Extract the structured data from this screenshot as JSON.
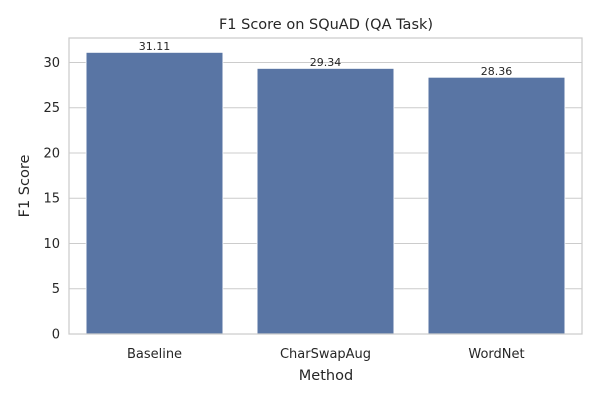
{
  "chart_data": {
    "type": "bar",
    "title": "F1 Score on SQuAD (QA Task)",
    "xlabel": "Method",
    "ylabel": "F1 Score",
    "categories": [
      "Baseline",
      "CharSwapAug",
      "WordNet"
    ],
    "values": [
      31.11,
      29.34,
      28.36
    ],
    "value_labels": [
      "31.11",
      "29.34",
      "28.36"
    ],
    "ylim": [
      0,
      32.7
    ],
    "yticks": [
      0,
      5,
      10,
      15,
      20,
      25,
      30
    ],
    "grid": "horizontal",
    "colors": {
      "bar": "#5975a4",
      "grid": "#cccccc",
      "axes_edge": "#cccccc",
      "text": "#262626"
    }
  }
}
